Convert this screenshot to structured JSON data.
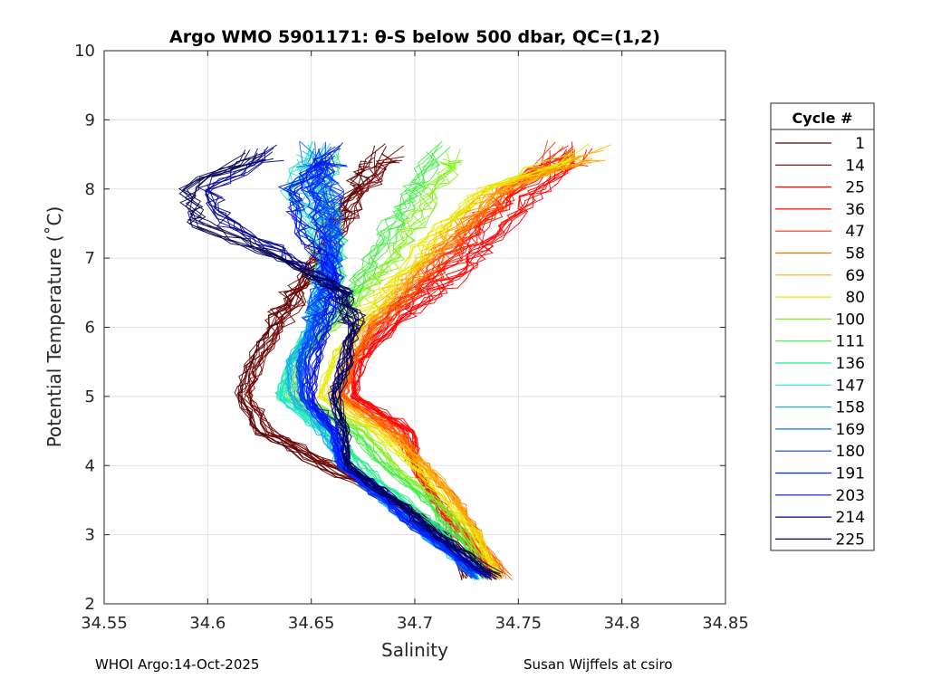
{
  "chart_data": {
    "type": "line",
    "title": "Argo WMO 5901171: θ-S below 500 dbar,  QC=(1,2)",
    "xlabel": "Salinity",
    "ylabel": "Potential Temperature (˚C)",
    "xlim": [
      34.55,
      34.85
    ],
    "ylim": [
      2,
      10
    ],
    "xticks": [
      "34.55",
      "34.6",
      "34.65",
      "34.7",
      "34.75",
      "34.8",
      "34.85"
    ],
    "yticks": [
      "2",
      "3",
      "4",
      "5",
      "6",
      "7",
      "8",
      "9",
      "10"
    ],
    "grid": true,
    "legend_title": "Cycle #",
    "legend_placement": "right-outside",
    "temperature_levels": [
      2.4,
      3,
      3.5,
      4,
      4.5,
      5,
      5.5,
      6,
      6.5,
      7,
      7.5,
      8,
      8.5
    ],
    "series": [
      {
        "name": "1",
        "color": "#5a0000",
        "salinity": [
          34.725,
          34.715,
          34.69,
          34.655,
          34.625,
          34.615,
          34.62,
          34.63,
          34.64,
          34.65,
          34.66,
          34.67,
          34.68
        ]
      },
      {
        "name": "14",
        "color": "#700000",
        "salinity": [
          34.725,
          34.715,
          34.69,
          34.66,
          34.63,
          34.62,
          34.625,
          34.635,
          34.645,
          34.655,
          34.665,
          34.675,
          34.69
        ]
      },
      {
        "name": "25",
        "color": "#ff0000",
        "salinity": [
          34.735,
          34.725,
          34.71,
          34.7,
          34.7,
          34.67,
          34.675,
          34.69,
          34.71,
          34.73,
          34.745,
          34.76,
          34.78
        ]
      },
      {
        "name": "36",
        "color": "#ff0800",
        "salinity": [
          34.735,
          34.72,
          34.71,
          34.7,
          34.695,
          34.67,
          34.67,
          34.685,
          34.7,
          34.72,
          34.735,
          34.75,
          34.77
        ]
      },
      {
        "name": "47",
        "color": "#ff3300",
        "salinity": [
          34.74,
          34.725,
          34.71,
          34.7,
          34.69,
          34.665,
          34.67,
          34.68,
          34.7,
          34.715,
          34.73,
          34.745,
          34.77
        ]
      },
      {
        "name": "58",
        "color": "#ff6a00",
        "salinity": [
          34.745,
          34.73,
          34.72,
          34.705,
          34.69,
          34.665,
          34.67,
          34.68,
          34.695,
          34.71,
          34.725,
          34.745,
          34.78
        ]
      },
      {
        "name": "69",
        "color": "#ffae00",
        "salinity": [
          34.74,
          34.73,
          34.72,
          34.705,
          34.685,
          34.66,
          34.665,
          34.675,
          34.69,
          34.705,
          34.72,
          34.74,
          34.79
        ]
      },
      {
        "name": "80",
        "color": "#e8e800",
        "salinity": [
          34.74,
          34.73,
          34.715,
          34.7,
          34.68,
          34.655,
          34.66,
          34.67,
          34.685,
          34.7,
          34.715,
          34.735,
          34.78
        ]
      },
      {
        "name": "100",
        "color": "#88ee22",
        "salinity": [
          34.735,
          34.725,
          34.71,
          34.69,
          34.675,
          34.645,
          34.645,
          34.66,
          34.675,
          34.69,
          34.7,
          34.71,
          34.72
        ]
      },
      {
        "name": "111",
        "color": "#44ee44",
        "salinity": [
          34.735,
          34.72,
          34.705,
          34.685,
          34.67,
          34.64,
          34.645,
          34.655,
          34.67,
          34.68,
          34.69,
          34.7,
          34.71
        ]
      },
      {
        "name": "136",
        "color": "#22ee88",
        "salinity": [
          34.73,
          34.715,
          34.695,
          34.675,
          34.66,
          34.635,
          34.64,
          34.65,
          34.66,
          34.665,
          34.66,
          34.655,
          34.66
        ]
      },
      {
        "name": "147",
        "color": "#22e8cc",
        "salinity": [
          34.73,
          34.71,
          34.69,
          34.67,
          34.655,
          34.635,
          34.64,
          34.65,
          34.655,
          34.655,
          34.65,
          34.64,
          34.65
        ]
      },
      {
        "name": "158",
        "color": "#1ab0e8",
        "salinity": [
          34.73,
          34.705,
          34.685,
          34.665,
          34.655,
          34.64,
          34.64,
          34.65,
          34.655,
          34.66,
          34.655,
          34.65,
          34.65
        ]
      },
      {
        "name": "169",
        "color": "#0a70ff",
        "salinity": [
          34.73,
          34.705,
          34.685,
          34.665,
          34.66,
          34.645,
          34.645,
          34.65,
          34.655,
          34.66,
          34.66,
          34.655,
          34.65
        ]
      },
      {
        "name": "180",
        "color": "#0040ff",
        "salinity": [
          34.73,
          34.705,
          34.685,
          34.665,
          34.66,
          34.645,
          34.645,
          34.65,
          34.655,
          34.66,
          34.66,
          34.66,
          34.655
        ]
      },
      {
        "name": "191",
        "color": "#0020ff",
        "salinity": [
          34.735,
          34.705,
          34.685,
          34.665,
          34.66,
          34.648,
          34.648,
          34.655,
          34.66,
          34.66,
          34.655,
          34.65,
          34.66
        ]
      },
      {
        "name": "203",
        "color": "#0010e8",
        "salinity": [
          34.735,
          34.71,
          34.69,
          34.667,
          34.662,
          34.65,
          34.652,
          34.658,
          34.66,
          34.655,
          34.645,
          34.64,
          34.66
        ]
      },
      {
        "name": "214",
        "color": "#000090",
        "salinity": [
          34.735,
          34.71,
          34.69,
          34.668,
          34.665,
          34.66,
          34.665,
          34.67,
          34.665,
          34.64,
          34.61,
          34.6,
          34.63
        ]
      },
      {
        "name": "225",
        "color": "#000050",
        "salinity": [
          34.74,
          34.712,
          34.69,
          34.668,
          34.667,
          34.662,
          34.668,
          34.672,
          34.665,
          34.635,
          34.595,
          34.59,
          34.625
        ]
      }
    ]
  },
  "footer": {
    "left": "WHOI Argo:14-Oct-2025",
    "right": "Susan Wijffels at csiro"
  }
}
